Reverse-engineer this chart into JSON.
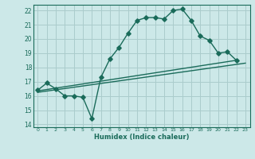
{
  "title": "",
  "xlabel": "Humidex (Indice chaleur)",
  "background_color": "#cce8e8",
  "grid_color": "#aacccc",
  "line_color": "#1a6b5a",
  "xlim": [
    -0.5,
    23.5
  ],
  "ylim": [
    13.8,
    22.4
  ],
  "xticks": [
    0,
    1,
    2,
    3,
    4,
    5,
    6,
    7,
    8,
    9,
    10,
    11,
    12,
    13,
    14,
    15,
    16,
    17,
    18,
    19,
    20,
    21,
    22,
    23
  ],
  "yticks": [
    14,
    15,
    16,
    17,
    18,
    19,
    20,
    21,
    22
  ],
  "curve1_x": [
    0,
    1,
    2,
    3,
    4,
    5,
    6,
    7,
    8,
    9,
    10,
    11,
    12,
    13,
    14,
    15,
    16,
    17,
    18,
    19,
    20,
    21,
    22
  ],
  "curve1_y": [
    16.4,
    16.9,
    16.5,
    16.0,
    16.0,
    15.9,
    14.4,
    17.3,
    18.6,
    19.4,
    20.4,
    21.3,
    21.5,
    21.5,
    21.4,
    22.0,
    22.1,
    21.3,
    20.2,
    19.9,
    19.0,
    19.1,
    18.5
  ],
  "line2_x": [
    0,
    22
  ],
  "line2_y": [
    16.35,
    18.5
  ],
  "line3_x": [
    0,
    23
  ],
  "line3_y": [
    16.25,
    18.3
  ],
  "marker_size": 2.8,
  "linewidth": 1.0
}
